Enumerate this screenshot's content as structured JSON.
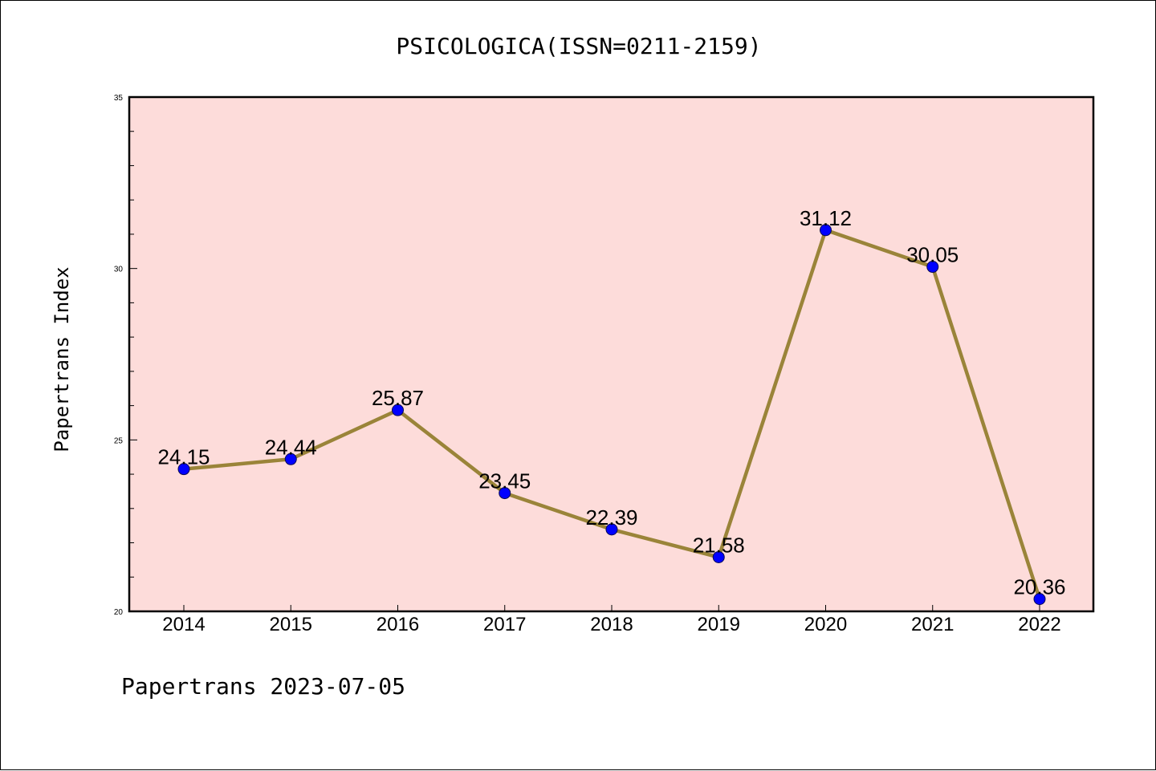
{
  "footer": "Papertrans 2023-07-05",
  "chart_data": {
    "type": "line",
    "title": "PSICOLOGICA(ISSN=0211-2159)",
    "xlabel": "",
    "ylabel": "Papertrans Index",
    "categories": [
      "2014",
      "2015",
      "2016",
      "2017",
      "2018",
      "2019",
      "2020",
      "2021",
      "2022"
    ],
    "values": [
      24.15,
      24.44,
      25.87,
      23.45,
      22.39,
      21.58,
      31.12,
      30.05,
      20.36
    ],
    "data_labels": [
      "24.15",
      "24.44",
      "25.87",
      "23.45",
      "22.39",
      "21.58",
      "31.12",
      "30.05",
      "20.36"
    ],
    "ylim": [
      20,
      35
    ],
    "yticks": [
      20,
      25,
      30,
      35
    ],
    "ytick_labels": [
      "20",
      "25",
      "30",
      "35"
    ],
    "grid": false,
    "legend": "none",
    "colors": {
      "plot_background": "#fddcda",
      "line": "#9a8439",
      "marker": "#0000ff"
    }
  }
}
